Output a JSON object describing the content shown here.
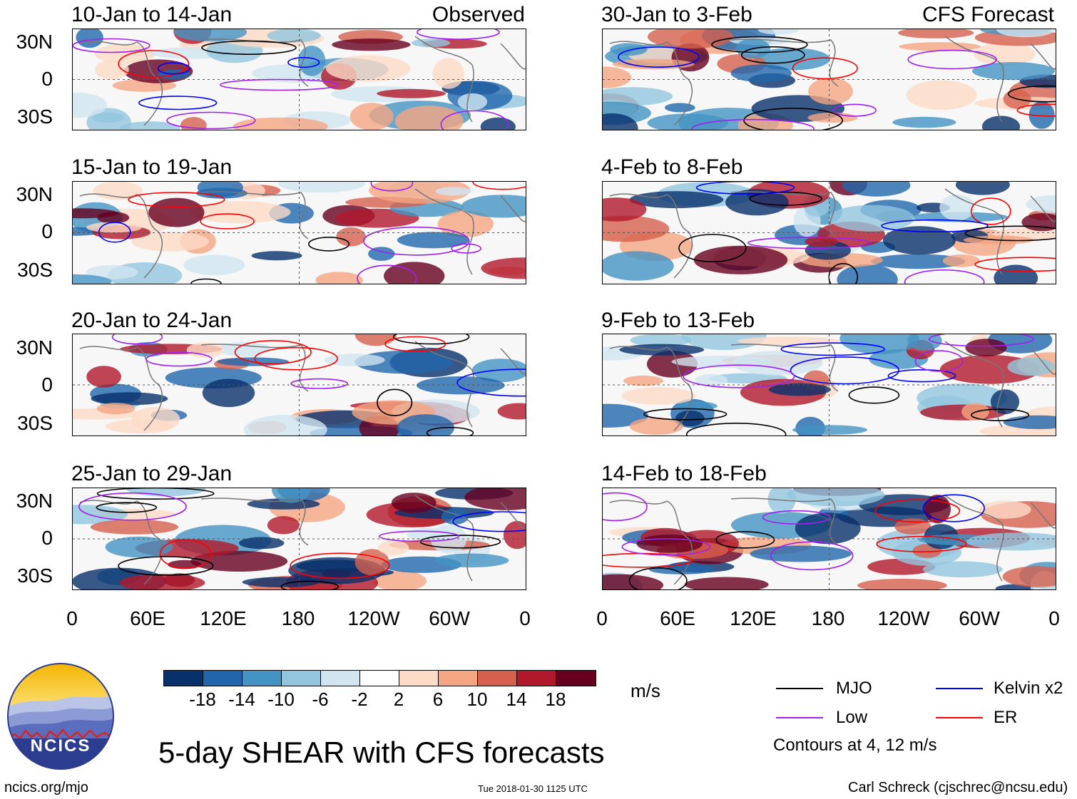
{
  "figure": {
    "title": "5-day SHEAR with CFS forecasts",
    "left_column_tag": "Observed",
    "right_column_tag": "CFS Forecast",
    "lat_labels": [
      "30N",
      "0",
      "30S"
    ],
    "lon_labels": [
      "0",
      "60E",
      "120E",
      "180",
      "120W",
      "60W",
      "0"
    ]
  },
  "panels_left": [
    {
      "title": "10-Jan to 14-Jan"
    },
    {
      "title": "15-Jan to 19-Jan"
    },
    {
      "title": "20-Jan to 24-Jan"
    },
    {
      "title": "25-Jan to 29-Jan"
    }
  ],
  "panels_right": [
    {
      "title": "30-Jan to 3-Feb"
    },
    {
      "title": "4-Feb to 8-Feb"
    },
    {
      "title": "9-Feb to 13-Feb"
    },
    {
      "title": "14-Feb to 18-Feb"
    }
  ],
  "colorbar": {
    "units": "m/s",
    "labels": [
      "-18",
      "-14",
      "-10",
      "-6",
      "-2",
      "2",
      "6",
      "10",
      "14",
      "18"
    ],
    "colors": [
      "#08306b",
      "#2166ac",
      "#4393c3",
      "#92c5de",
      "#d1e5f0",
      "#ffffff",
      "#fddbc7",
      "#f4a582",
      "#d6604d",
      "#b2182b",
      "#67001f"
    ]
  },
  "legend": {
    "items": [
      {
        "label": "MJO",
        "color": "#000000"
      },
      {
        "label": "Kelvin x2",
        "color": "#0000ff"
      },
      {
        "label": "Low",
        "color": "#a020f0"
      },
      {
        "label": "ER",
        "color": "#ff0000"
      }
    ],
    "note": "Contours at 4, 12 m/s"
  },
  "logo": {
    "text": "NCICS"
  },
  "footer": {
    "url": "ncics.org/mjo",
    "timestamp": "Tue 2018-01-30 1125 UTC",
    "author": "Carl Schreck (cjschrec@ncsu.edu)"
  }
}
